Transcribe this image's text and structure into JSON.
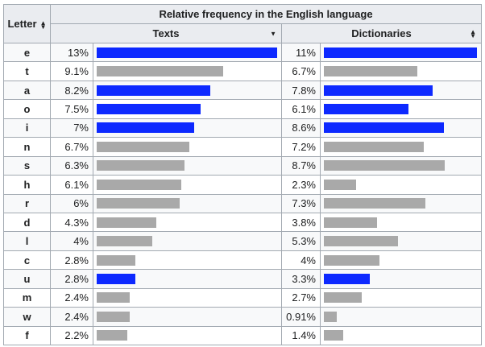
{
  "table": {
    "group_header": "Relative frequency in the English language",
    "col_letter": "Letter",
    "col_texts": "Texts",
    "col_dictionaries": "Dictionaries",
    "colors": {
      "gray": "#a9a9a9",
      "blue": "#0d29ff"
    },
    "scale_max": {
      "texts": 13,
      "dictionaries": 11
    },
    "rows": [
      {
        "letter": "e",
        "texts": "13%",
        "texts_value": 13,
        "dict": "11%",
        "dict_value": 11,
        "highlight": true
      },
      {
        "letter": "t",
        "texts": "9.1%",
        "texts_value": 9.1,
        "dict": "6.7%",
        "dict_value": 6.7,
        "highlight": false
      },
      {
        "letter": "a",
        "texts": "8.2%",
        "texts_value": 8.2,
        "dict": "7.8%",
        "dict_value": 7.8,
        "highlight": true
      },
      {
        "letter": "o",
        "texts": "7.5%",
        "texts_value": 7.5,
        "dict": "6.1%",
        "dict_value": 6.1,
        "highlight": true
      },
      {
        "letter": "i",
        "texts": "7%",
        "texts_value": 7,
        "dict": "8.6%",
        "dict_value": 8.6,
        "highlight": true
      },
      {
        "letter": "n",
        "texts": "6.7%",
        "texts_value": 6.7,
        "dict": "7.2%",
        "dict_value": 7.2,
        "highlight": false
      },
      {
        "letter": "s",
        "texts": "6.3%",
        "texts_value": 6.3,
        "dict": "8.7%",
        "dict_value": 8.7,
        "highlight": false
      },
      {
        "letter": "h",
        "texts": "6.1%",
        "texts_value": 6.1,
        "dict": "2.3%",
        "dict_value": 2.3,
        "highlight": false
      },
      {
        "letter": "r",
        "texts": "6%",
        "texts_value": 6,
        "dict": "7.3%",
        "dict_value": 7.3,
        "highlight": false
      },
      {
        "letter": "d",
        "texts": "4.3%",
        "texts_value": 4.3,
        "dict": "3.8%",
        "dict_value": 3.8,
        "highlight": false
      },
      {
        "letter": "l",
        "texts": "4%",
        "texts_value": 4,
        "dict": "5.3%",
        "dict_value": 5.3,
        "highlight": false
      },
      {
        "letter": "c",
        "texts": "2.8%",
        "texts_value": 2.8,
        "dict": "4%",
        "dict_value": 4,
        "highlight": false
      },
      {
        "letter": "u",
        "texts": "2.8%",
        "texts_value": 2.8,
        "dict": "3.3%",
        "dict_value": 3.3,
        "highlight": true
      },
      {
        "letter": "m",
        "texts": "2.4%",
        "texts_value": 2.4,
        "dict": "2.7%",
        "dict_value": 2.7,
        "highlight": false
      },
      {
        "letter": "w",
        "texts": "2.4%",
        "texts_value": 2.4,
        "dict": "0.91%",
        "dict_value": 0.91,
        "highlight": false
      },
      {
        "letter": "f",
        "texts": "2.2%",
        "texts_value": 2.2,
        "dict": "1.4%",
        "dict_value": 1.4,
        "highlight": false
      }
    ]
  }
}
